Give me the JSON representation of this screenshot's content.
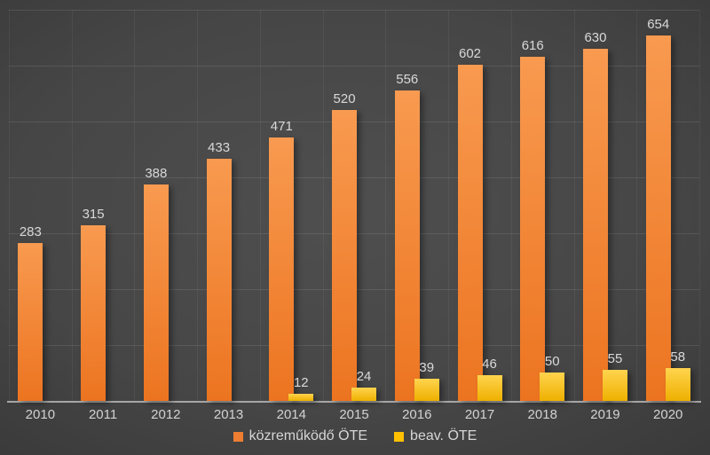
{
  "chart_data": {
    "type": "bar",
    "title": "",
    "xlabel": "",
    "ylabel": "",
    "categories": [
      "2010",
      "2011",
      "2012",
      "2013",
      "2014",
      "2015",
      "2016",
      "2017",
      "2018",
      "2019",
      "2020"
    ],
    "series": [
      {
        "name": "közreműködő ÖTE",
        "legend_color": "#ed7d31",
        "bar_color_top": "#f89a50",
        "bar_color_bottom": "#ec7420",
        "values": [
          283,
          315,
          388,
          433,
          471,
          520,
          556,
          602,
          616,
          630,
          654
        ]
      },
      {
        "name": "beav. ÖTE",
        "legend_color": "#ffc000",
        "bar_color_top": "#ffd44e",
        "bar_color_bottom": "#eeb000",
        "values": [
          0,
          0,
          0,
          0,
          12,
          24,
          39,
          46,
          50,
          55,
          58
        ]
      }
    ],
    "ylim": [
      0,
      700
    ],
    "gridline_interval": 100,
    "grid": "horizontal-and-vertical",
    "legend_position": "bottom",
    "value_labels_shown": true,
    "colors": {
      "background_center": "#4f4f4f",
      "background_edge": "#282828",
      "axis_line": "#a6a6a6",
      "label_text": "#d9d9d9"
    }
  }
}
